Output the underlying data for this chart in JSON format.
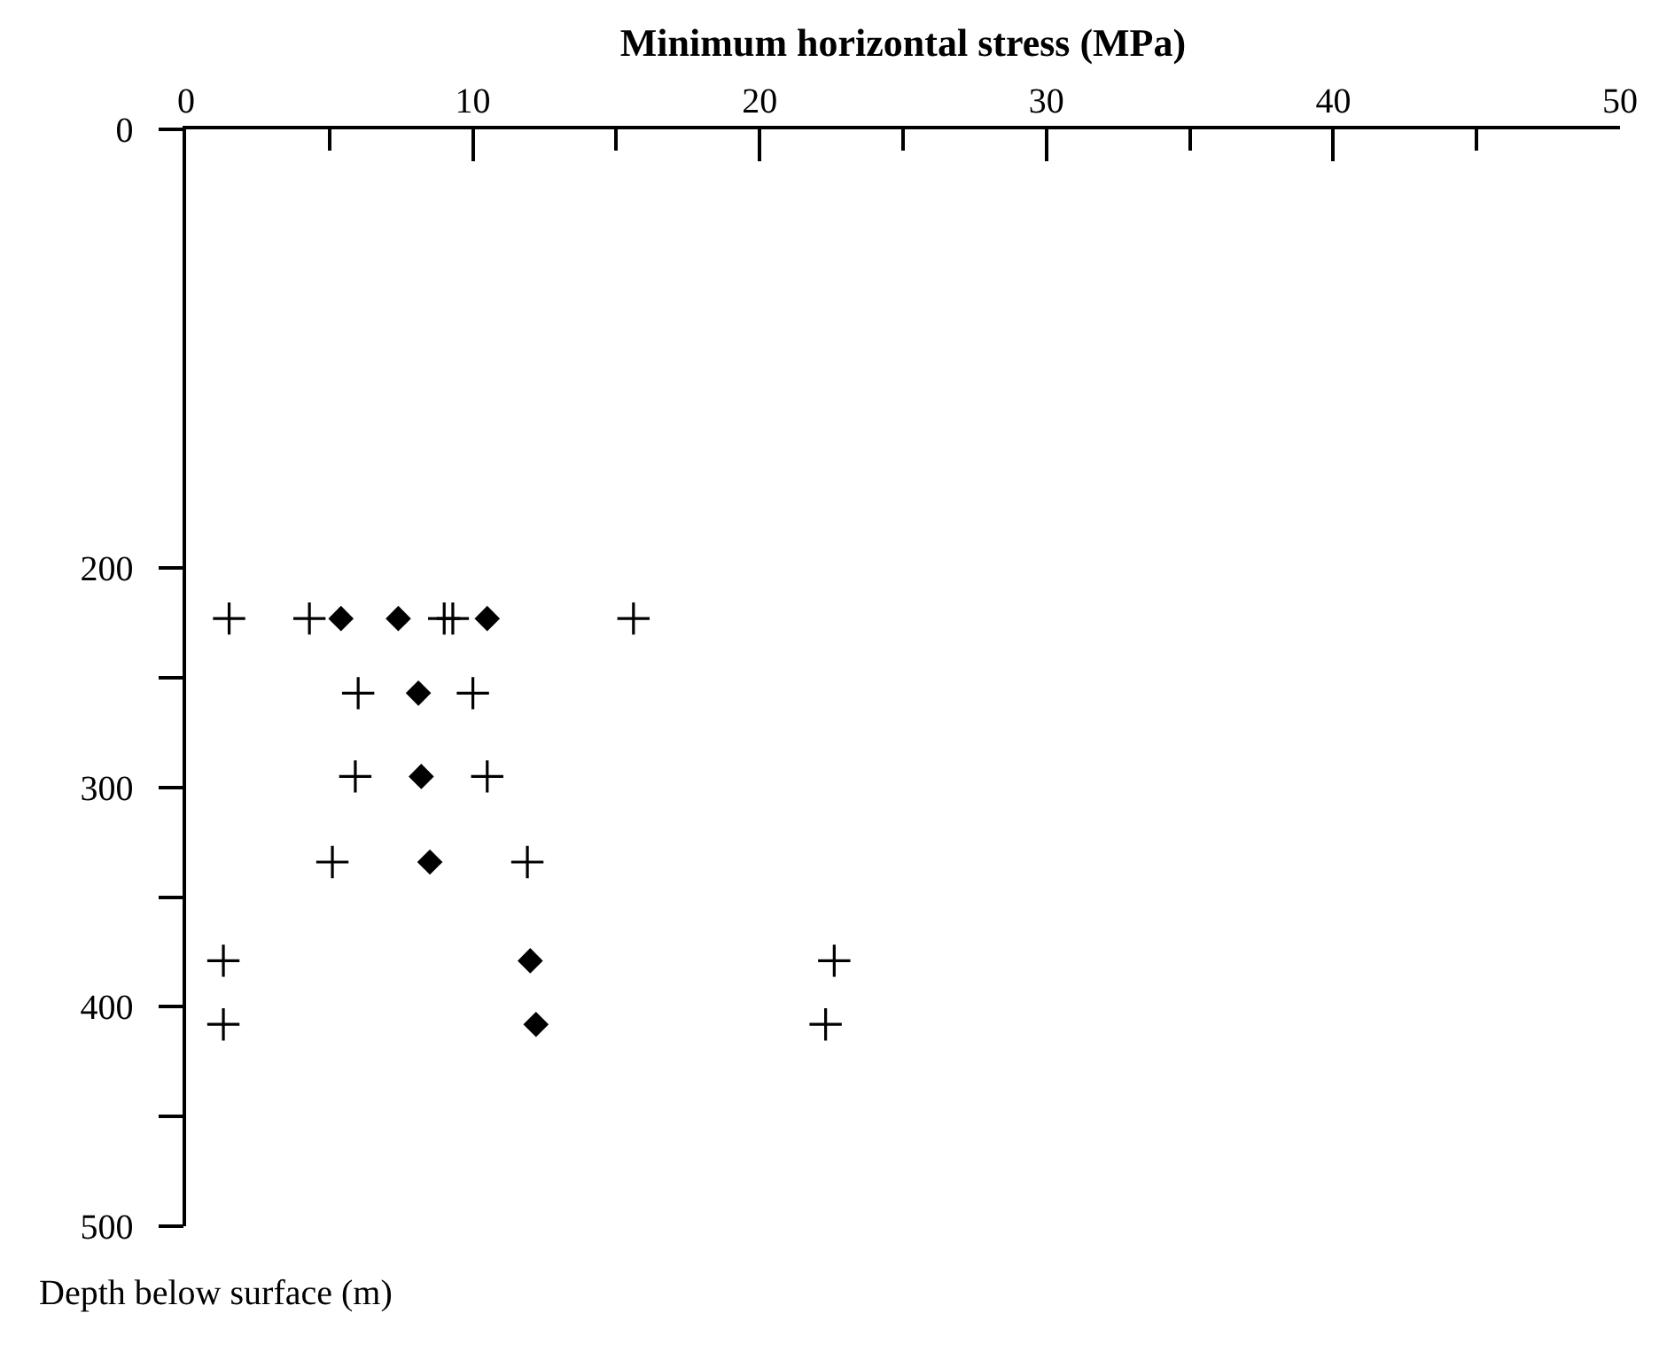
{
  "chart_data": {
    "type": "scatter",
    "xlabel": "Minimum horizontal stress (MPa)",
    "ylabel": "Depth below surface (m)",
    "xlim": [
      0,
      50
    ],
    "xticks": [
      0,
      {
        "value": 5,
        "label": null
      },
      10,
      {
        "value": 15,
        "label": null
      },
      20,
      {
        "value": 25,
        "label": null
      },
      30,
      {
        "value": 35,
        "label": null
      },
      40,
      {
        "value": 45,
        "label": null
      },
      50
    ],
    "ylim": [
      500,
      0
    ],
    "yticks": [
      0,
      200,
      {
        "value": 250,
        "label": null
      },
      300,
      {
        "value": 350,
        "label": null
      },
      400,
      {
        "value": 450,
        "label": null
      },
      500
    ],
    "grid": false,
    "series": [
      {
        "marker": "cross",
        "color": "#000000",
        "x": [
          1.5,
          4.3,
          9.0,
          9.3,
          15.6,
          6.0,
          10.0,
          5.9,
          10.5,
          5.1,
          11.9,
          1.3,
          22.6,
          1.3,
          22.3
        ],
        "values": [
          223,
          223,
          223,
          223,
          223,
          257,
          257,
          295,
          295,
          334,
          334,
          379,
          379,
          408,
          408
        ]
      },
      {
        "marker": "diamond",
        "color": "#000000",
        "x": [
          5.4,
          7.4,
          10.5,
          8.1,
          8.2,
          8.5,
          12.0,
          12.2
        ],
        "values": [
          223,
          223,
          223,
          257,
          295,
          334,
          379,
          408
        ]
      }
    ]
  }
}
